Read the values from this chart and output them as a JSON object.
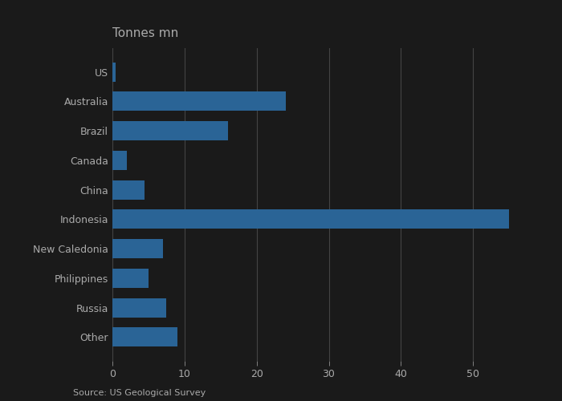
{
  "categories": [
    "US",
    "Australia",
    "Brazil",
    "Canada",
    "China",
    "Indonesia",
    "New Caledonia",
    "Philippines",
    "Russia",
    "Other"
  ],
  "values": [
    0.5,
    24,
    16,
    2,
    4.5,
    55,
    7,
    5,
    7.5,
    9
  ],
  "bar_color": "#2a6496",
  "title": "Tonnes mn",
  "source": "Source: US Geological Survey",
  "xlim": [
    0,
    60
  ],
  "xticks": [
    0,
    10,
    20,
    30,
    40,
    50
  ],
  "background_color": "#1a1a1a",
  "plot_bg_color": "#1a1a1a",
  "grid_color": "#444444",
  "text_color": "#aaaaaa",
  "title_fontsize": 11,
  "label_fontsize": 9,
  "tick_fontsize": 9,
  "source_fontsize": 8
}
